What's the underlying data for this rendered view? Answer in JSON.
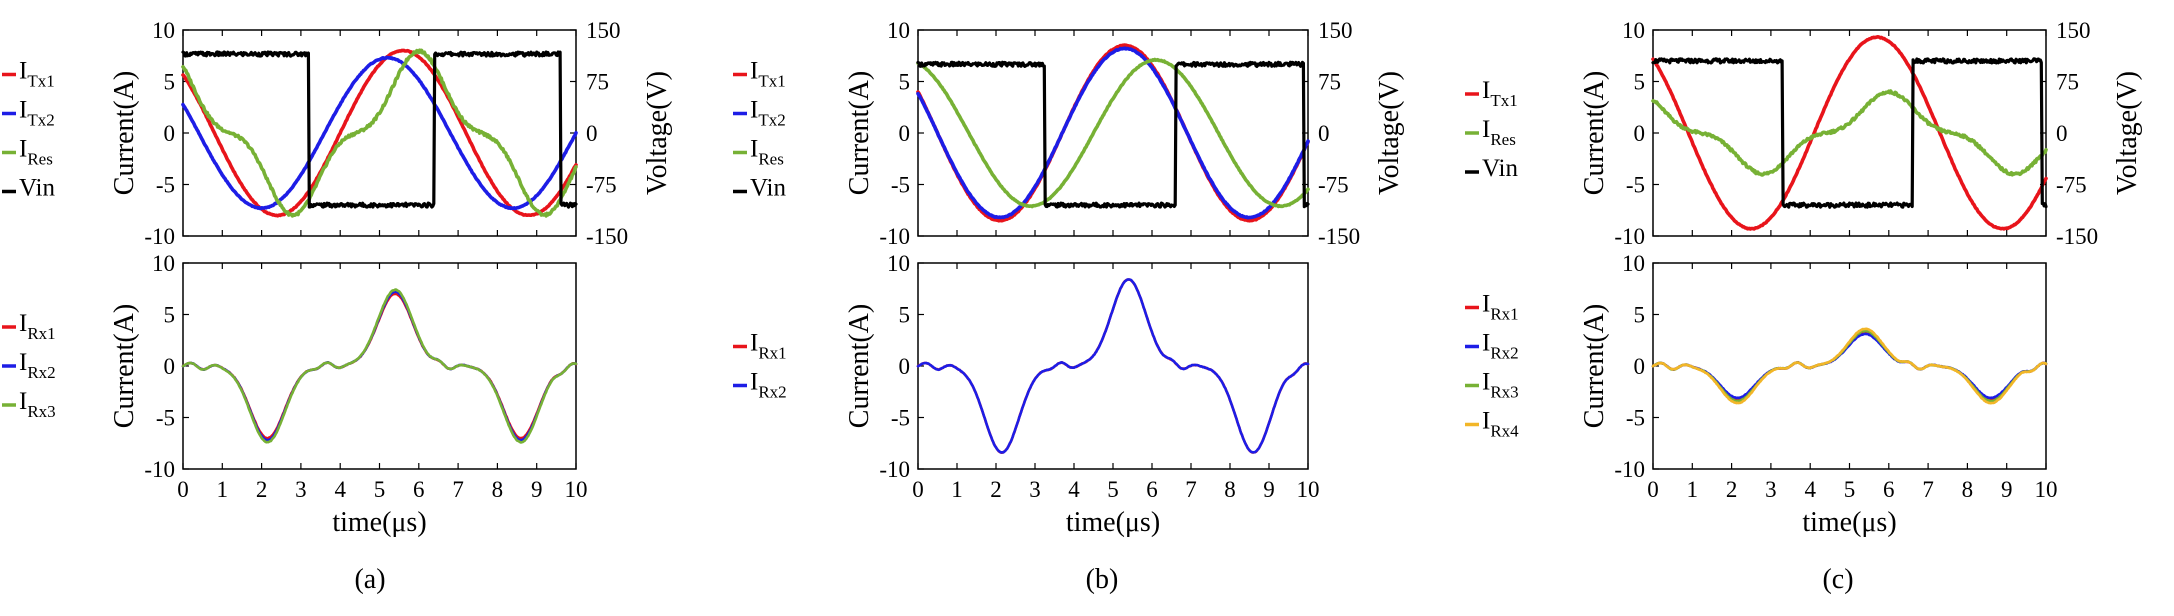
{
  "figure": {
    "xlabel": "time(μs)",
    "xticks": [
      "0",
      "1",
      "2",
      "3",
      "4",
      "5",
      "6",
      "7",
      "8",
      "9",
      "10"
    ],
    "top_left_ticks": [
      "10",
      "5",
      "0",
      "-5",
      "-10"
    ],
    "top_right_ticks": [
      "150",
      "75",
      "0",
      "-75",
      "-150"
    ],
    "bottom_left_ticks": [
      "10",
      "5",
      "0",
      "-5",
      "-10"
    ],
    "top_ylabel_left": "Current(A)",
    "top_ylabel_right": "Voltage(V)",
    "bottom_ylabel": "Current(A)",
    "captions": [
      "(a)",
      "(b)",
      "(c)"
    ],
    "colors": {
      "red": "#e8141b",
      "blue": "#1d1de6",
      "green": "#77b135",
      "black": "#000000",
      "yellow": "#f2b628"
    }
  },
  "chart_data": [
    {
      "type": "line",
      "panel": "a-top",
      "xlim": [
        0,
        10
      ],
      "ylim": [
        -10,
        10
      ],
      "y2lim": [
        -150,
        150
      ],
      "xlabel": "",
      "ylabel": "Current(A)",
      "y2label": "Voltage(V)",
      "legend": "left",
      "series": [
        {
          "name": "I",
          "sub": "Tx1",
          "kind": "sine",
          "amp": 8.0,
          "phase": 4.0,
          "axis": "left"
        },
        {
          "name": "I",
          "sub": "Tx2",
          "kind": "sine",
          "amp": 7.3,
          "phase": 3.6,
          "axis": "left"
        },
        {
          "name": "I",
          "sub": "Res",
          "kind": "res",
          "amp": 7.0,
          "phase": 4.4,
          "axis": "left"
        },
        {
          "name": "Vin",
          "sub": "",
          "kind": "square",
          "level": 115,
          "low": -105,
          "edges": [
            3.2,
            6.4,
            9.6
          ],
          "axis": "right"
        }
      ]
    },
    {
      "type": "line",
      "panel": "a-bottom",
      "xlim": [
        0,
        10
      ],
      "ylim": [
        -10,
        10
      ],
      "xlabel": "time(μs)",
      "ylabel": "Current(A)",
      "legend": "left",
      "series": [
        {
          "name": "I",
          "sub": "Rx1",
          "kind": "rx",
          "amp": 7.0
        },
        {
          "name": "I",
          "sub": "Rx2",
          "kind": "rx",
          "amp": 7.2
        },
        {
          "name": "I",
          "sub": "Rx3",
          "kind": "rx",
          "amp": 7.4
        }
      ]
    },
    {
      "type": "line",
      "panel": "b-top",
      "xlim": [
        0,
        10
      ],
      "ylim": [
        -10,
        10
      ],
      "y2lim": [
        -150,
        150
      ],
      "xlabel": "",
      "ylabel": "Current(A)",
      "y2label": "Voltage(V)",
      "legend": "left",
      "series": [
        {
          "name": "I",
          "sub": "Tx1",
          "kind": "sine",
          "amp": 8.5,
          "phase": 3.7,
          "axis": "left"
        },
        {
          "name": "I",
          "sub": "Tx2",
          "kind": "sine",
          "amp": 8.2,
          "phase": 3.7,
          "axis": "left"
        },
        {
          "name": "I",
          "sub": "Res",
          "kind": "sine",
          "amp": 7.1,
          "phase": 4.5,
          "axis": "left"
        },
        {
          "name": "Vin",
          "sub": "",
          "kind": "square",
          "level": 100,
          "low": -105,
          "edges": [
            3.25,
            6.6,
            9.9
          ],
          "axis": "right"
        }
      ]
    },
    {
      "type": "line",
      "panel": "b-bottom",
      "xlim": [
        0,
        10
      ],
      "ylim": [
        -10,
        10
      ],
      "xlabel": "time(μs)",
      "ylabel": "Current(A)",
      "legend": "left",
      "series": [
        {
          "name": "I",
          "sub": "Rx1",
          "kind": "rx",
          "amp": 8.4
        },
        {
          "name": "I",
          "sub": "Rx2",
          "kind": "rx",
          "amp": 8.4
        }
      ]
    },
    {
      "type": "line",
      "panel": "c-top",
      "xlim": [
        0,
        10
      ],
      "ylim": [
        -10,
        10
      ],
      "y2lim": [
        -150,
        150
      ],
      "xlabel": "",
      "ylabel": "Current(A)",
      "y2label": "Voltage(V)",
      "legend": "left",
      "series": [
        {
          "name": "I",
          "sub": "Tx1",
          "kind": "sine",
          "amp": 9.3,
          "phase": 4.1,
          "axis": "left"
        },
        {
          "name": "I",
          "sub": "Res",
          "kind": "res",
          "amp": 3.5,
          "phase": 4.4,
          "axis": "left"
        },
        {
          "name": "Vin",
          "sub": "",
          "kind": "square",
          "level": 105,
          "low": -105,
          "edges": [
            3.3,
            6.6,
            9.9
          ],
          "axis": "right"
        }
      ]
    },
    {
      "type": "line",
      "panel": "c-bottom",
      "xlim": [
        0,
        10
      ],
      "ylim": [
        -10,
        10
      ],
      "xlabel": "time(μs)",
      "ylabel": "Current(A)",
      "legend": "left",
      "series": [
        {
          "name": "I",
          "sub": "Rx1",
          "kind": "rx",
          "amp": 3.3
        },
        {
          "name": "I",
          "sub": "Rx2",
          "kind": "rx",
          "amp": 3.1
        },
        {
          "name": "I",
          "sub": "Rx3",
          "kind": "rx",
          "amp": 3.4
        },
        {
          "name": "I",
          "sub": "Rx4",
          "kind": "rx",
          "amp": 3.6
        }
      ]
    }
  ]
}
